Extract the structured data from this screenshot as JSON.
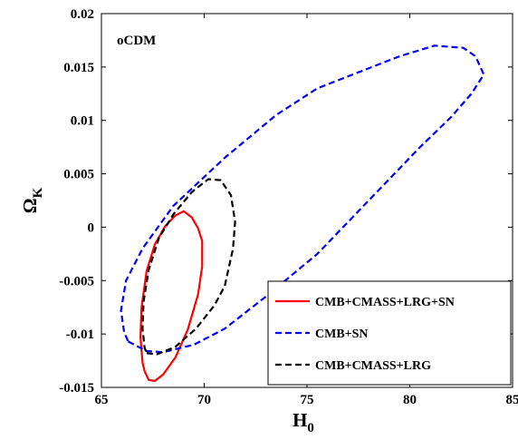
{
  "chart_data": {
    "type": "line",
    "title": "",
    "annotation": "oCDM",
    "xlabel": "H",
    "xlabel_sub": "0",
    "ylabel": "Ω",
    "ylabel_sub": "K",
    "xlim": [
      65,
      85
    ],
    "ylim": [
      -0.015,
      0.02
    ],
    "xticks": [
      65,
      70,
      75,
      80,
      85
    ],
    "yticks": [
      -0.015,
      -0.01,
      -0.005,
      0,
      0.005,
      0.01,
      0.015,
      0.02
    ],
    "xtick_labels": [
      "65",
      "70",
      "75",
      "80",
      "85"
    ],
    "ytick_labels": [
      "-0.015",
      "-0.01",
      "-0.005",
      "0",
      "0.005",
      "0.01",
      "0.015",
      "0.02"
    ],
    "grid": false,
    "legend_position": "bottom-right",
    "series": [
      {
        "name": "CMB+CMASS+LRG+SN",
        "color": "#ff0000",
        "style": "solid",
        "points": [
          [
            67.1,
            -0.0135
          ],
          [
            67.3,
            -0.0143
          ],
          [
            67.6,
            -0.0144
          ],
          [
            68.0,
            -0.0138
          ],
          [
            68.6,
            -0.0122
          ],
          [
            69.2,
            -0.0096
          ],
          [
            69.7,
            -0.0063
          ],
          [
            69.9,
            -0.0037
          ],
          [
            69.9,
            -0.0013
          ],
          [
            69.7,
            -0.0001
          ],
          [
            69.4,
            0.0009
          ],
          [
            69.0,
            0.0015
          ],
          [
            68.6,
            0.0011
          ],
          [
            68.1,
            0.0001
          ],
          [
            67.6,
            -0.0016
          ],
          [
            67.2,
            -0.0041
          ],
          [
            66.95,
            -0.0075
          ],
          [
            66.9,
            -0.0103
          ],
          [
            67.0,
            -0.0127
          ],
          [
            67.1,
            -0.0135
          ]
        ]
      },
      {
        "name": "CMB+SN",
        "color": "#0000ff",
        "style": "dashed",
        "points": [
          [
            66.3,
            -0.0107
          ],
          [
            67.2,
            -0.0116
          ],
          [
            68.0,
            -0.0117
          ],
          [
            69.5,
            -0.011
          ],
          [
            71.0,
            -0.0095
          ],
          [
            73.0,
            -0.0065
          ],
          [
            75.5,
            -0.0025
          ],
          [
            78.0,
            0.0025
          ],
          [
            80.5,
            0.0075
          ],
          [
            82.0,
            0.0103
          ],
          [
            83.0,
            0.0125
          ],
          [
            83.6,
            0.0143
          ],
          [
            83.2,
            0.016
          ],
          [
            82.6,
            0.0168
          ],
          [
            81.2,
            0.017
          ],
          [
            79.5,
            0.016
          ],
          [
            77.5,
            0.0145
          ],
          [
            75.5,
            0.013
          ],
          [
            73.5,
            0.0105
          ],
          [
            71.0,
            0.0065
          ],
          [
            68.5,
            0.002
          ],
          [
            67.0,
            -0.002
          ],
          [
            66.2,
            -0.005
          ],
          [
            65.95,
            -0.0078
          ],
          [
            66.1,
            -0.0098
          ],
          [
            66.3,
            -0.0107
          ]
        ]
      },
      {
        "name": "CMB+CMASS+LRG",
        "color": "#000000",
        "style": "dashed",
        "points": [
          [
            67.2,
            -0.0118
          ],
          [
            67.7,
            -0.0119
          ],
          [
            68.6,
            -0.0112
          ],
          [
            69.6,
            -0.0095
          ],
          [
            70.5,
            -0.0073
          ],
          [
            71.0,
            -0.0055
          ],
          [
            71.4,
            -0.002
          ],
          [
            71.5,
            0.0005
          ],
          [
            71.3,
            0.003
          ],
          [
            70.8,
            0.0044
          ],
          [
            70.2,
            0.0045
          ],
          [
            69.4,
            0.0033
          ],
          [
            68.5,
            0.0012
          ],
          [
            67.8,
            -0.001
          ],
          [
            67.3,
            -0.004
          ],
          [
            67.05,
            -0.007
          ],
          [
            67.0,
            -0.0095
          ],
          [
            67.1,
            -0.0113
          ],
          [
            67.2,
            -0.0118
          ]
        ]
      }
    ]
  }
}
